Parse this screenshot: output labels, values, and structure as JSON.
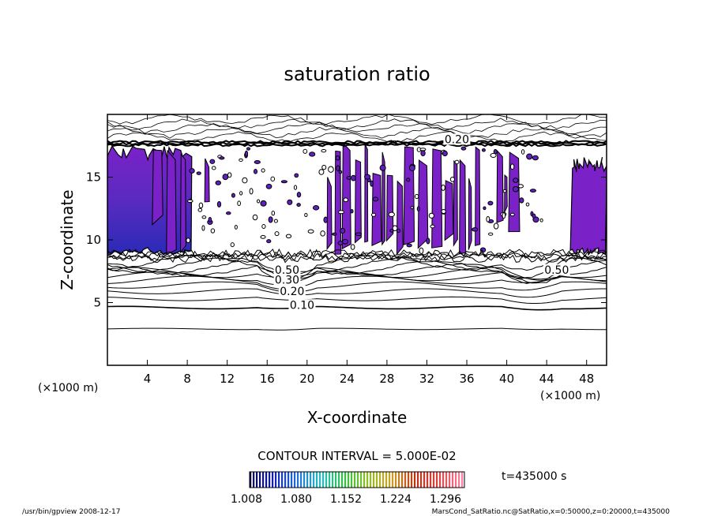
{
  "chart_data": {
    "type": "heatmap",
    "title": "saturation ratio",
    "xlabel": "X-coordinate",
    "ylabel": "Z-coordinate",
    "x_unit_left": "(×1000 m)",
    "x_unit_right": "(×1000 m)",
    "xlim": [
      0,
      50
    ],
    "ylim": [
      0,
      20
    ],
    "x_ticks": [
      "4",
      "8",
      "12",
      "16",
      "20",
      "24",
      "28",
      "32",
      "36",
      "40",
      "44",
      "48"
    ],
    "y_ticks": [
      "5",
      "10",
      "15"
    ],
    "contour_interval_text": "CONTOUR INTERVAL = 5.000E-02",
    "time_text": "t=435000 s",
    "colorbar_labels": [
      "1.008",
      "1.080",
      "1.152",
      "1.224",
      "1.296"
    ],
    "colorbar_range": [
      1.008,
      1.3
    ],
    "colormap": [
      "#000050",
      "#1020c0",
      "#2070e0",
      "#20c0c0",
      "#30c040",
      "#90c020",
      "#d0a020",
      "#c03010",
      "#e04040",
      "#ff80a0"
    ],
    "fill_colors": {
      "supersaturated_dark": "#6020c0",
      "supersaturated_light": "#7a22c8",
      "core": "#3030b0"
    },
    "contour_labels": [
      {
        "text": "0.10",
        "x": 19.5,
        "z": 4.7
      },
      {
        "text": "0.20",
        "x": 18.5,
        "z": 5.8
      },
      {
        "text": "0.30",
        "x": 18.0,
        "z": 6.7
      },
      {
        "text": "0.50",
        "x": 18.0,
        "z": 7.5
      },
      {
        "text": "0.20",
        "x": 35.0,
        "z": 17.9
      },
      {
        "text": "0.50",
        "x": 45.0,
        "z": 7.5
      }
    ],
    "contour_levels_z": [
      2.9,
      4.6,
      5.3,
      5.9,
      6.4,
      6.8,
      7.1,
      7.4,
      7.6,
      7.8,
      8.0,
      8.2
    ],
    "supersaturated_regions_x": [
      [
        0,
        8.5
      ],
      [
        5,
        10
      ],
      [
        22,
        26
      ],
      [
        26,
        38
      ],
      [
        46.5,
        50
      ]
    ],
    "cloud_layer_z": [
      8.5,
      17.8
    ]
  },
  "footer": {
    "left": "/usr/bin/gpview  2008-12-17",
    "right": "MarsCond_SatRatio.nc@SatRatio,x=0:50000,z=0:20000,t=435000"
  }
}
